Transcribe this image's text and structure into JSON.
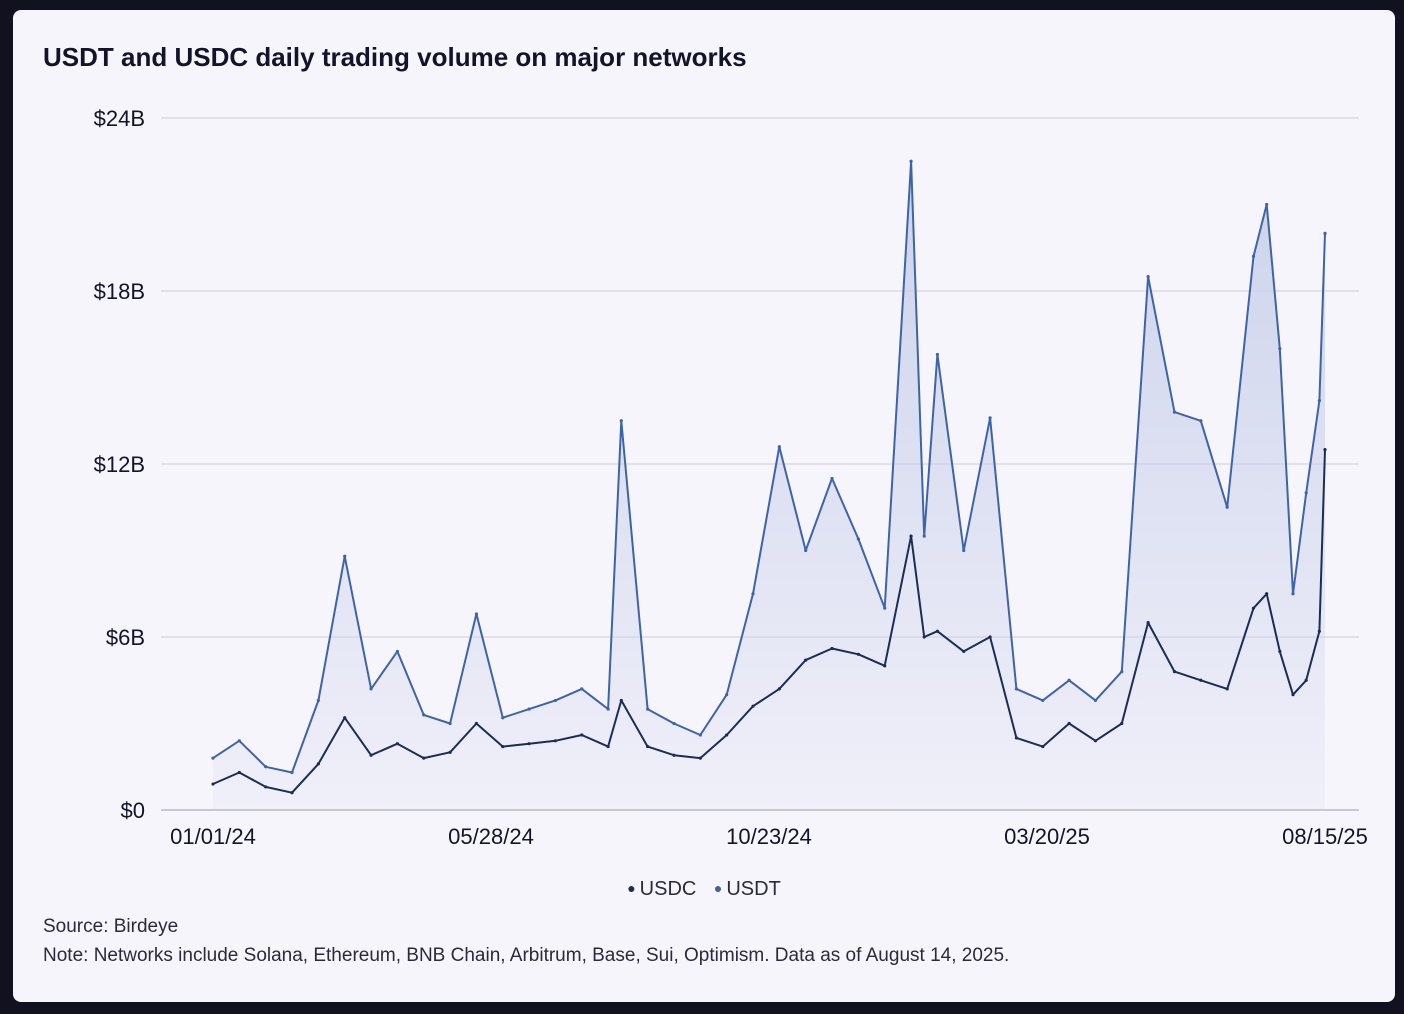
{
  "title": "USDT and USDC daily trading volume on major networks",
  "source": "Source: Birdeye",
  "note": "Note: Networks include Solana, Ethereum, BNB Chain, Arbitrum, Base, Sui, Optimism. Data as of August 14, 2025.",
  "colors": {
    "usdc": "#1c2d55",
    "usdt": "#3e64a8",
    "fill": "#c9d1ea",
    "grid": "#e3e0ec"
  },
  "legend": {
    "usdc": "USDC",
    "usdt": "USDT"
  },
  "chart_data": {
    "type": "line",
    "x_tick_labels": [
      "01/01/24",
      "05/28/24",
      "10/23/24",
      "03/20/25",
      "08/15/25"
    ],
    "y_tick_labels": [
      "$0",
      "$6B",
      "$12B",
      "$18B",
      "$24B"
    ],
    "ylim": [
      0,
      24
    ],
    "y_unit": "billions USD",
    "x": [
      "2024-01-01",
      "2024-01-15",
      "2024-01-29",
      "2024-02-12",
      "2024-02-26",
      "2024-03-11",
      "2024-03-25",
      "2024-04-08",
      "2024-04-22",
      "2024-05-06",
      "2024-05-20",
      "2024-06-03",
      "2024-06-17",
      "2024-07-01",
      "2024-07-15",
      "2024-07-29",
      "2024-08-05",
      "2024-08-19",
      "2024-09-02",
      "2024-09-16",
      "2024-09-30",
      "2024-10-14",
      "2024-10-28",
      "2024-11-11",
      "2024-11-25",
      "2024-12-09",
      "2024-12-23",
      "2025-01-06",
      "2025-01-13",
      "2025-01-20",
      "2025-02-03",
      "2025-02-17",
      "2025-03-03",
      "2025-03-17",
      "2025-03-31",
      "2025-04-14",
      "2025-04-28",
      "2025-05-12",
      "2025-05-26",
      "2025-06-09",
      "2025-06-23",
      "2025-07-07",
      "2025-07-14",
      "2025-07-21",
      "2025-07-28",
      "2025-08-04",
      "2025-08-11",
      "2025-08-14"
    ],
    "series": [
      {
        "name": "USDT",
        "values": [
          1.8,
          2.4,
          1.5,
          1.3,
          3.8,
          8.8,
          4.2,
          5.5,
          3.3,
          3.0,
          6.8,
          3.2,
          3.5,
          3.8,
          4.2,
          3.5,
          13.5,
          3.5,
          3.0,
          2.6,
          4.0,
          7.5,
          12.6,
          9.0,
          11.5,
          9.4,
          7.0,
          22.5,
          9.5,
          15.8,
          9.0,
          13.6,
          4.2,
          3.8,
          4.5,
          3.8,
          4.8,
          18.5,
          13.8,
          13.5,
          10.5,
          19.2,
          21.0,
          16.0,
          7.5,
          11.0,
          14.2,
          20.0
        ]
      },
      {
        "name": "USDC",
        "values": [
          0.9,
          1.3,
          0.8,
          0.6,
          1.6,
          3.2,
          1.9,
          2.3,
          1.8,
          2.0,
          3.0,
          2.2,
          2.3,
          2.4,
          2.6,
          2.2,
          3.8,
          2.2,
          1.9,
          1.8,
          2.6,
          3.6,
          4.2,
          5.2,
          5.6,
          5.4,
          5.0,
          9.5,
          6.0,
          6.2,
          5.5,
          6.0,
          2.5,
          2.2,
          3.0,
          2.4,
          3.0,
          6.5,
          4.8,
          4.5,
          4.2,
          7.0,
          7.5,
          5.5,
          4.0,
          4.5,
          6.2,
          12.5
        ]
      }
    ]
  }
}
